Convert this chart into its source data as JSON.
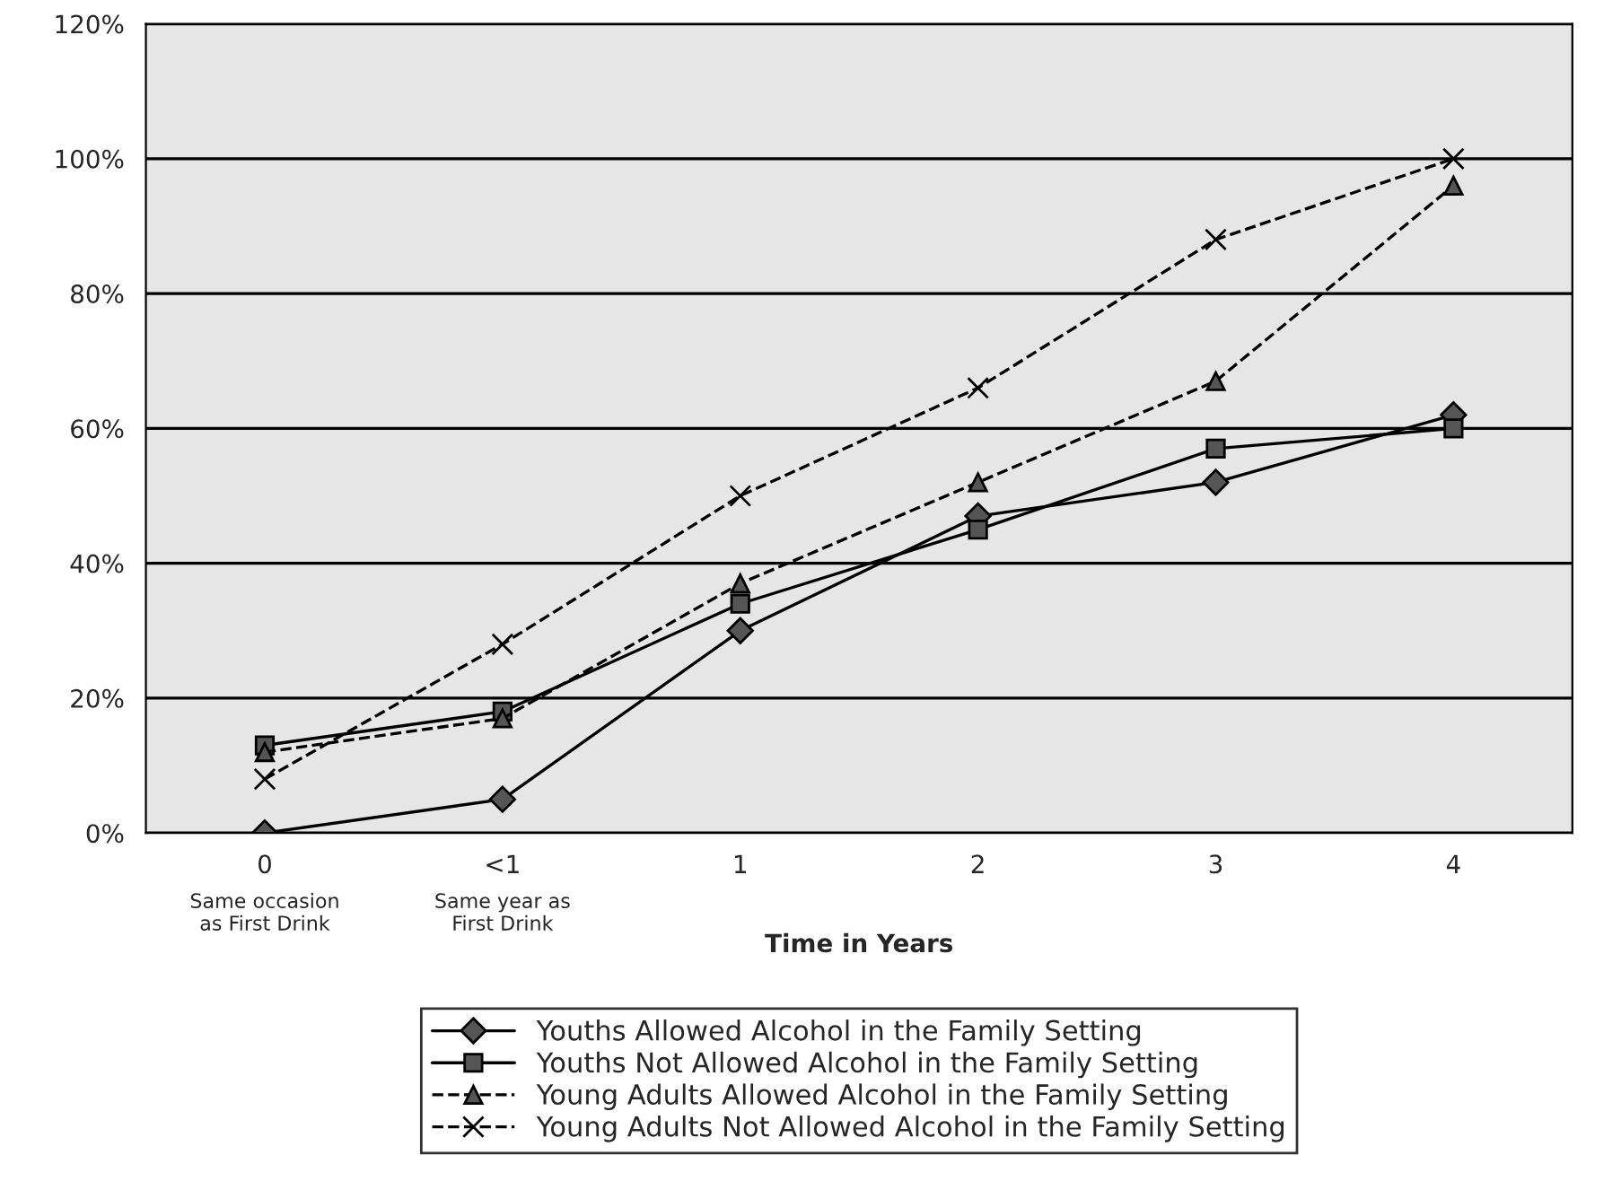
{
  "chart_data": {
    "type": "line",
    "xlabel": "Time in Years",
    "categories": [
      "0",
      "<1",
      "1",
      "2",
      "3",
      "4"
    ],
    "annotations": [
      "Same occasion\nas First Drink",
      "Same year as\nFirst Drink"
    ],
    "ylim": [
      0,
      1.2
    ],
    "yticks": [
      {
        "value": 0,
        "label": "0%"
      },
      {
        "value": 0.2,
        "label": "20%"
      },
      {
        "value": 0.4,
        "label": "40%"
      },
      {
        "value": 0.6,
        "label": "60%"
      },
      {
        "value": 0.8,
        "label": "80%"
      },
      {
        "value": 1.0,
        "label": "100%"
      },
      {
        "value": 1.2,
        "label": "120%"
      }
    ],
    "grid": "y",
    "legend": "bottom",
    "series": [
      {
        "name": "Youths Allowed Alcohol in the Family Setting",
        "color": "#000000",
        "marker": "diamond",
        "line_style": "solid",
        "values": [
          0.0,
          0.05,
          0.3,
          0.47,
          0.52,
          0.62
        ]
      },
      {
        "name": "Youths Not Allowed Alcohol in the Family Setting",
        "color": "#000000",
        "marker": "square",
        "line_style": "solid",
        "values": [
          0.13,
          0.18,
          0.34,
          0.45,
          0.57,
          0.6
        ]
      },
      {
        "name": "Young Adults Allowed Alcohol in the Family Setting",
        "color": "#000000",
        "marker": "triangle",
        "line_style": "dashed",
        "values": [
          0.12,
          0.17,
          0.37,
          0.52,
          0.67,
          0.96
        ]
      },
      {
        "name": "Young Adults Not Allowed Alcohol in the Family Setting",
        "color": "#000000",
        "marker": "cross",
        "line_style": "dashed",
        "values": [
          0.08,
          0.28,
          0.5,
          0.66,
          0.88,
          1.0
        ]
      }
    ]
  }
}
